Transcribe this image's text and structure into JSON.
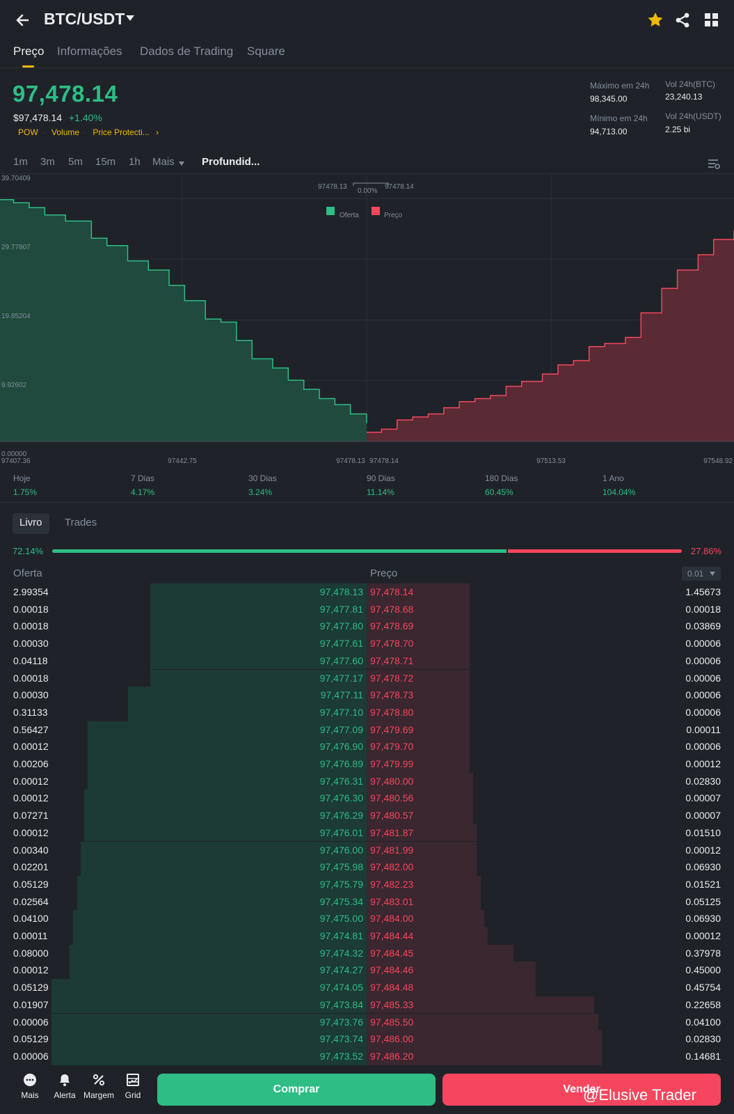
{
  "header": {
    "pair": "BTC/USDT",
    "icons": [
      "back-arrow-icon",
      "star-icon",
      "share-icon",
      "grid-apps-icon"
    ],
    "star_color": "#f0b90b"
  },
  "tabs": [
    "Preço",
    "Informações",
    "Dados de Trading",
    "Square"
  ],
  "ticker": {
    "last_price": "97,478.14",
    "usd_price": "$97,478.14",
    "change": "+1.40%",
    "tags": [
      "POW",
      "Volume",
      "Price Protecti...",
      "›"
    ],
    "high_24h_label": "Máximo em 24h",
    "high_24h": "98,345.00",
    "low_24h_label": "Mínimo em 24h",
    "low_24h": "94,713.00",
    "vol_btc_label": "Vol 24h(BTC)",
    "vol_btc": "23,240.13",
    "vol_usdt_label": "Vol 24h(USDT)",
    "vol_usdt": "2.25 bi"
  },
  "intervals": [
    "1m",
    "3m",
    "5m",
    "15m",
    "1h",
    "Mais",
    "Profundid..."
  ],
  "depth_chart": {
    "top_bid": "97478.13",
    "spread": "0.00%",
    "top_ask": "97478.14",
    "legend_bid": "Oferta",
    "legend_ask": "Preço",
    "y_ticks": [
      "39.70409",
      "29.77807",
      "19.85204",
      "9.92602",
      "0.00000"
    ],
    "x_ticks": [
      "97407.36",
      "97442.75",
      "97478.13",
      "97478.14",
      "97513.53",
      "97548.92"
    ]
  },
  "chart_data": {
    "type": "area",
    "title": "",
    "xlabel": "",
    "ylabel": "",
    "xlim": [
      97407.36,
      97548.92
    ],
    "ylim": [
      0,
      39.70409
    ],
    "series": [
      {
        "name": "Oferta",
        "color": "#2ebd85",
        "x": [
          97407.36,
          97410,
          97413,
          97416,
          97420,
          97425,
          97428,
          97432,
          97436,
          97440,
          97443,
          97447,
          97450,
          97453,
          97456,
          97460,
          97463,
          97466,
          97469,
          97472,
          97475,
          97478.13
        ],
        "y": [
          39.5,
          39.0,
          38.2,
          37.0,
          36.0,
          33.2,
          32.0,
          29.5,
          28.0,
          25.5,
          23.0,
          20.0,
          19.5,
          16.5,
          13.5,
          12.0,
          10.0,
          8.5,
          7.0,
          6.0,
          4.5,
          3.0
        ]
      },
      {
        "name": "Preço",
        "color": "#f6465d",
        "x": [
          97478.14,
          97481,
          97484,
          97487,
          97490,
          97493,
          97496,
          97499,
          97502,
          97505,
          97508,
          97512,
          97515,
          97518,
          97521,
          97524,
          97528,
          97531,
          97535,
          97538,
          97542,
          97545,
          97548.92
        ],
        "y": [
          1.5,
          2.0,
          3.5,
          4.0,
          4.5,
          5.5,
          6.5,
          7.0,
          7.5,
          9.0,
          9.8,
          11.0,
          12.5,
          13.2,
          15.5,
          16.0,
          17.0,
          21.0,
          25.0,
          28.0,
          30.5,
          33.0,
          34.5
        ]
      }
    ]
  },
  "performance": [
    {
      "label": "Hoje",
      "value": "1.75%"
    },
    {
      "label": "7 Dias",
      "value": "4.17%"
    },
    {
      "label": "30 Dias",
      "value": "3.24%"
    },
    {
      "label": "90 Dias",
      "value": "11.14%"
    },
    {
      "label": "180 Dias",
      "value": "60.45%"
    },
    {
      "label": "1 Ano",
      "value": "104.04%"
    }
  ],
  "book_tabs": [
    "Livro",
    "Trades"
  ],
  "ratio": {
    "bid_pct": "72.14%",
    "ask_pct": "27.86%",
    "bid_fraction": 0.7214
  },
  "book_headers": {
    "bid": "Oferta",
    "price": "Preço",
    "precision": "0.01"
  },
  "order_book": {
    "bids": [
      [
        "2.99354",
        "97,478.13"
      ],
      [
        "0.00018",
        "97,477.81"
      ],
      [
        "0.00018",
        "97,477.80"
      ],
      [
        "0.00030",
        "97,477.61"
      ],
      [
        "0.04118",
        "97,477.60"
      ],
      [
        "0.00018",
        "97,477.17"
      ],
      [
        "0.00030",
        "97,477.11"
      ],
      [
        "0.31133",
        "97,477.10"
      ],
      [
        "0.56427",
        "97,477.09"
      ],
      [
        "0.00012",
        "97,476.90"
      ],
      [
        "0.00206",
        "97,476.89"
      ],
      [
        "0.00012",
        "97,476.31"
      ],
      [
        "0.00012",
        "97,476.30"
      ],
      [
        "0.07271",
        "97,476.29"
      ],
      [
        "0.00012",
        "97,476.01"
      ],
      [
        "0.00340",
        "97,476.00"
      ],
      [
        "0.02201",
        "97,475.98"
      ],
      [
        "0.05129",
        "97,475.79"
      ],
      [
        "0.02564",
        "97,475.34"
      ],
      [
        "0.04100",
        "97,475.00"
      ],
      [
        "0.00011",
        "97,474.81"
      ],
      [
        "0.08000",
        "97,474.32"
      ],
      [
        "0.00012",
        "97,474.27"
      ],
      [
        "0.05129",
        "97,474.05"
      ],
      [
        "0.01907",
        "97,473.84"
      ],
      [
        "0.00006",
        "97,473.76"
      ],
      [
        "0.05129",
        "97,473.74"
      ],
      [
        "0.00006",
        "97,473.52"
      ]
    ],
    "asks": [
      [
        "97,478.14",
        "1.45673"
      ],
      [
        "97,478.68",
        "0.00018"
      ],
      [
        "97,478.69",
        "0.03869"
      ],
      [
        "97,478.70",
        "0.00006"
      ],
      [
        "97,478.71",
        "0.00006"
      ],
      [
        "97,478.72",
        "0.00006"
      ],
      [
        "97,478.73",
        "0.00006"
      ],
      [
        "97,478.80",
        "0.00006"
      ],
      [
        "97,479.69",
        "0.00011"
      ],
      [
        "97,479.70",
        "0.00006"
      ],
      [
        "97,479.99",
        "0.00012"
      ],
      [
        "97,480.00",
        "0.02830"
      ],
      [
        "97,480.56",
        "0.00007"
      ],
      [
        "97,480.57",
        "0.00007"
      ],
      [
        "97,481.87",
        "0.01510"
      ],
      [
        "97,481.99",
        "0.00012"
      ],
      [
        "97,482.00",
        "0.06930"
      ],
      [
        "97,482.23",
        "0.01521"
      ],
      [
        "97,483.01",
        "0.05125"
      ],
      [
        "97,484.00",
        "0.06930"
      ],
      [
        "97,484.44",
        "0.00012"
      ],
      [
        "97,484.45",
        "0.37978"
      ],
      [
        "97,484.46",
        "0.45000"
      ],
      [
        "97,484.48",
        "0.45754"
      ],
      [
        "97,485.33",
        "0.22658"
      ],
      [
        "97,485.50",
        "0.04100"
      ],
      [
        "97,486.00",
        "0.02830"
      ],
      [
        "97,486.20",
        "0.14681"
      ]
    ],
    "bid_depth": [
      0.59,
      0.59,
      0.59,
      0.59,
      0.59,
      0.59,
      0.65,
      0.65,
      0.76,
      0.76,
      0.76,
      0.76,
      0.77,
      0.77,
      0.77,
      0.78,
      0.78,
      0.79,
      0.79,
      0.8,
      0.8,
      0.81,
      0.81,
      0.86,
      0.86,
      0.86,
      0.86,
      0.86
    ],
    "ask_depth": [
      0.28,
      0.28,
      0.28,
      0.28,
      0.28,
      0.28,
      0.28,
      0.28,
      0.28,
      0.28,
      0.28,
      0.29,
      0.29,
      0.29,
      0.3,
      0.3,
      0.3,
      0.31,
      0.31,
      0.32,
      0.33,
      0.4,
      0.46,
      0.46,
      0.62,
      0.63,
      0.64,
      0.64
    ]
  },
  "bottom_nav": [
    {
      "label": "Mais",
      "icon": "more-dots-icon"
    },
    {
      "label": "Alerta",
      "icon": "bell-icon"
    },
    {
      "label": "Margem",
      "icon": "percent-icon"
    },
    {
      "label": "Grid",
      "icon": "grid-bot-icon"
    }
  ],
  "actions": {
    "buy": "Comprar",
    "sell": "Vender"
  },
  "watermark": "@Elusive Trader"
}
